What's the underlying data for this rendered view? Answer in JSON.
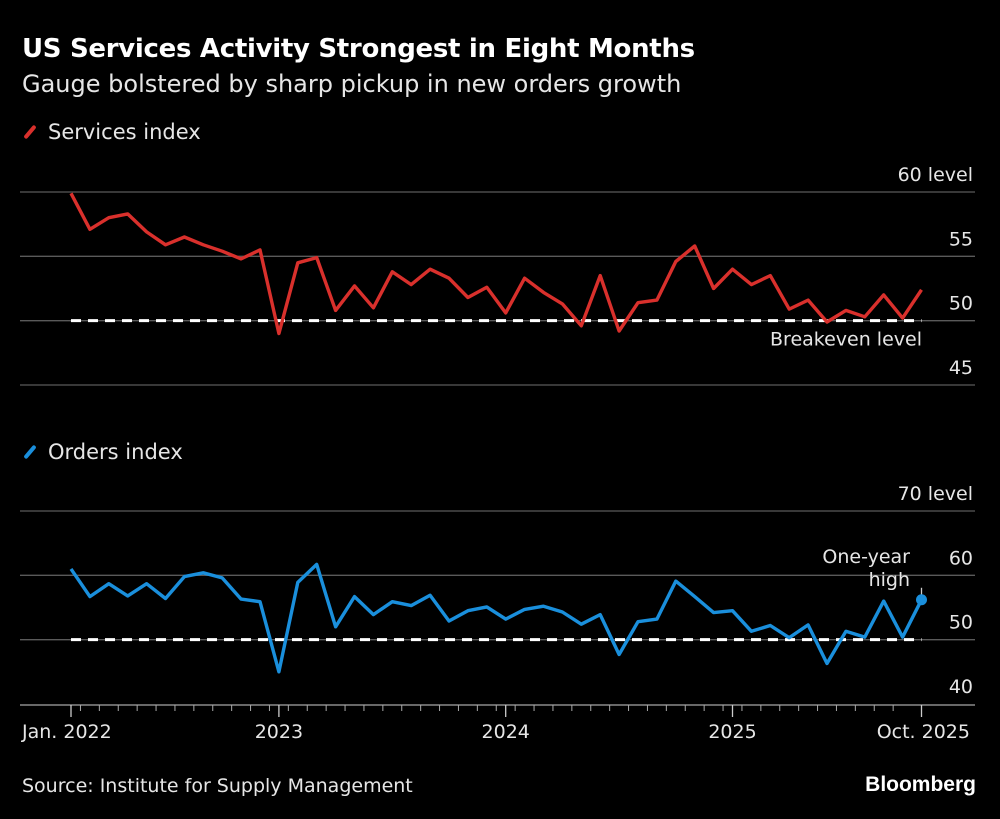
{
  "title": "US Services Activity Strongest in Eight Months",
  "subtitle": "Gauge bolstered by sharp pickup in new orders growth",
  "source": "Source: Institute for Supply Management",
  "brand": "Bloomberg",
  "chart_data": [
    {
      "type": "line",
      "legend": "Services index",
      "color": "#d9302c",
      "x_start": "2022-01",
      "x_end": "2025-10",
      "ylim": [
        45,
        60
      ],
      "yticks": [
        {
          "value": 60,
          "label": "60 level"
        },
        {
          "value": 55,
          "label": "55"
        },
        {
          "value": 50,
          "label": "50"
        },
        {
          "value": 45,
          "label": "45"
        }
      ],
      "reference_line": {
        "value": 50,
        "label": "Breakeven level",
        "style": "dashed"
      },
      "grid": true,
      "values": [
        59.9,
        57.1,
        58.0,
        58.3,
        56.9,
        55.9,
        56.5,
        55.9,
        55.4,
        54.8,
        55.5,
        49.0,
        54.5,
        54.9,
        50.8,
        52.7,
        51.0,
        53.8,
        52.8,
        54.0,
        53.3,
        51.8,
        52.6,
        50.6,
        53.3,
        52.2,
        51.3,
        49.6,
        53.5,
        49.2,
        51.4,
        51.6,
        54.6,
        55.8,
        52.5,
        54.0,
        52.8,
        53.5,
        50.9,
        51.6,
        49.9,
        50.8,
        50.3,
        52.0,
        50.2,
        52.4
      ]
    },
    {
      "type": "line",
      "legend": "Orders index",
      "color": "#1a8fdc",
      "x_start": "2022-01",
      "x_end": "2025-10",
      "ylim": [
        40,
        70
      ],
      "yticks": [
        {
          "value": 70,
          "label": "70 level"
        },
        {
          "value": 60,
          "label": "60"
        },
        {
          "value": 50,
          "label": "50"
        },
        {
          "value": 40,
          "label": "40"
        }
      ],
      "reference_line": {
        "value": 50,
        "style": "dashed"
      },
      "grid": true,
      "annotation": {
        "lines": [
          "One-year",
          "high"
        ],
        "month": "2025-10"
      },
      "values": [
        61.0,
        56.7,
        58.7,
        56.8,
        58.7,
        56.4,
        59.8,
        60.4,
        59.6,
        56.3,
        55.9,
        45.0,
        58.9,
        61.7,
        52.0,
        56.7,
        53.9,
        55.9,
        55.3,
        56.9,
        52.9,
        54.5,
        55.1,
        53.2,
        54.7,
        55.2,
        54.3,
        52.4,
        53.9,
        47.7,
        52.8,
        53.2,
        59.1,
        56.7,
        54.2,
        54.5,
        51.3,
        52.2,
        50.3,
        52.3,
        46.3,
        51.3,
        50.4,
        56.0,
        50.4,
        56.2
      ]
    }
  ],
  "x_axis": {
    "ticks": [
      {
        "month": "2022-01",
        "label": "Jan. 2022"
      },
      {
        "month": "2023-01",
        "label": "2023"
      },
      {
        "month": "2024-01",
        "label": "2024"
      },
      {
        "month": "2025-01",
        "label": "2025"
      },
      {
        "month": "2025-10",
        "label": "Oct. 2025"
      }
    ]
  }
}
